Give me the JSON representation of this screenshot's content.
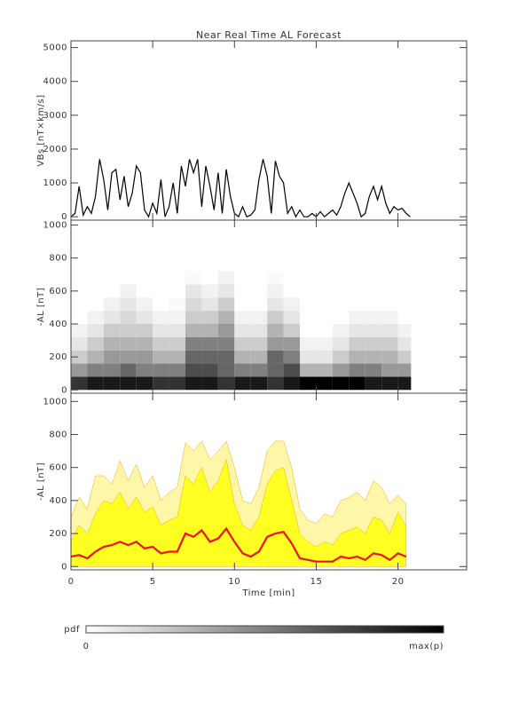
{
  "chart_data": [
    {
      "type": "line",
      "title": "Near Real Time AL Forecast",
      "ylabel": "VBs [nT×km/s]",
      "color": "#000000",
      "xlim": [
        0,
        24.2
      ],
      "xticks": [
        0,
        5,
        10,
        15,
        20
      ],
      "ylim": [
        -100,
        5200
      ],
      "yticks": [
        0,
        1000,
        2000,
        3000,
        4000,
        5000
      ],
      "x": [
        0,
        0.25,
        0.5,
        0.75,
        1,
        1.25,
        1.5,
        1.75,
        2,
        2.25,
        2.5,
        2.75,
        3,
        3.25,
        3.5,
        3.75,
        4,
        4.25,
        4.5,
        4.75,
        5,
        5.25,
        5.5,
        5.75,
        6,
        6.25,
        6.5,
        6.75,
        7,
        7.25,
        7.5,
        7.75,
        8,
        8.25,
        8.5,
        8.75,
        9,
        9.25,
        9.5,
        9.75,
        10,
        10.25,
        10.5,
        10.75,
        11,
        11.25,
        11.5,
        11.75,
        12,
        12.25,
        12.5,
        12.75,
        13,
        13.25,
        13.5,
        13.75,
        14,
        14.25,
        14.5,
        14.75,
        15,
        15.25,
        15.5,
        15.75,
        16,
        16.25,
        16.5,
        16.75,
        17,
        17.25,
        17.5,
        17.75,
        18,
        18.25,
        18.5,
        18.75,
        19,
        19.25,
        19.5,
        19.75,
        20,
        20.25,
        20.5,
        20.75
      ],
      "values": [
        0,
        100,
        900,
        50,
        300,
        100,
        600,
        1700,
        1100,
        200,
        1300,
        1400,
        500,
        1200,
        300,
        700,
        1500,
        1300,
        200,
        0,
        400,
        100,
        1100,
        0,
        300,
        1000,
        100,
        1500,
        900,
        1700,
        1300,
        1700,
        300,
        1500,
        900,
        200,
        1300,
        100,
        1400,
        600,
        100,
        0,
        300,
        0,
        50,
        200,
        1100,
        1700,
        1200,
        100,
        1650,
        1200,
        1000,
        100,
        300,
        0,
        200,
        0,
        0,
        100,
        0,
        150,
        0,
        100,
        200,
        50,
        300,
        700,
        1000,
        700,
        400,
        0,
        100,
        600,
        900,
        500,
        900,
        400,
        100,
        300,
        200,
        250,
        100,
        0
      ]
    },
    {
      "type": "heatmap",
      "ylabel": "-AL [nT]",
      "xlim": [
        0,
        24.2
      ],
      "xticks": [
        0,
        5,
        10,
        15,
        20
      ],
      "ylim": [
        -20,
        1030
      ],
      "yticks": [
        0,
        200,
        400,
        600,
        800,
        1000
      ],
      "x_edges": [
        0,
        1,
        2,
        3,
        4,
        5,
        6,
        7,
        8,
        9,
        10,
        11,
        12,
        13,
        14,
        15,
        16,
        17,
        18,
        19,
        20,
        20.8
      ],
      "y_edges": [
        0,
        80,
        160,
        240,
        320,
        400,
        480,
        560,
        640,
        720,
        800
      ],
      "pdf": [
        [
          0.8,
          0.4,
          0.2,
          0.1,
          0.05,
          0,
          0,
          0,
          0,
          0
        ],
        [
          0.9,
          0.5,
          0.3,
          0.2,
          0.1,
          0.05,
          0,
          0,
          0,
          0
        ],
        [
          0.9,
          0.5,
          0.4,
          0.3,
          0.2,
          0.1,
          0.05,
          0,
          0,
          0
        ],
        [
          0.9,
          0.6,
          0.4,
          0.3,
          0.2,
          0.15,
          0.1,
          0.05,
          0,
          0
        ],
        [
          0.9,
          0.5,
          0.4,
          0.3,
          0.2,
          0.1,
          0.05,
          0,
          0,
          0
        ],
        [
          0.8,
          0.5,
          0.3,
          0.2,
          0.1,
          0.05,
          0,
          0,
          0,
          0
        ],
        [
          0.8,
          0.5,
          0.3,
          0.2,
          0.1,
          0.05,
          0.02,
          0,
          0,
          0
        ],
        [
          0.9,
          0.7,
          0.6,
          0.5,
          0.3,
          0.2,
          0.15,
          0.1,
          0.02,
          0
        ],
        [
          0.9,
          0.7,
          0.6,
          0.5,
          0.3,
          0.2,
          0.1,
          0.05,
          0,
          0
        ],
        [
          0.8,
          0.6,
          0.6,
          0.5,
          0.4,
          0.3,
          0.2,
          0.1,
          0.05,
          0
        ],
        [
          0.9,
          0.5,
          0.3,
          0.2,
          0.1,
          0.05,
          0,
          0,
          0,
          0
        ],
        [
          0.9,
          0.5,
          0.3,
          0.2,
          0.1,
          0.05,
          0,
          0,
          0,
          0
        ],
        [
          0.8,
          0.6,
          0.6,
          0.4,
          0.3,
          0.2,
          0.1,
          0.05,
          0.02,
          0
        ],
        [
          0.9,
          0.7,
          0.5,
          0.4,
          0.2,
          0.1,
          0.05,
          0,
          0,
          0
        ],
        [
          1,
          0.3,
          0.1,
          0.05,
          0,
          0,
          0,
          0,
          0,
          0
        ],
        [
          1,
          0.3,
          0.1,
          0.05,
          0,
          0,
          0,
          0,
          0,
          0
        ],
        [
          1,
          0.4,
          0.2,
          0.1,
          0.05,
          0,
          0,
          0,
          0,
          0
        ],
        [
          1,
          0.5,
          0.3,
          0.2,
          0.1,
          0.05,
          0,
          0,
          0,
          0
        ],
        [
          0.9,
          0.5,
          0.3,
          0.2,
          0.1,
          0.05,
          0,
          0,
          0,
          0
        ],
        [
          0.9,
          0.4,
          0.3,
          0.2,
          0.1,
          0.05,
          0,
          0,
          0,
          0
        ],
        [
          0.9,
          0.4,
          0.2,
          0.1,
          0.05,
          0,
          0,
          0,
          0,
          0
        ]
      ],
      "colorbar": {
        "label": "pdf",
        "min_label": "0",
        "max_label": "max(p)"
      }
    },
    {
      "type": "area",
      "ylabel": "-AL [nT]",
      "xlabel": "Time [min]",
      "xlim": [
        0,
        24.2
      ],
      "xticks": [
        0,
        5,
        10,
        15,
        20
      ],
      "ylim": [
        -20,
        1050
      ],
      "yticks": [
        0,
        200,
        400,
        600,
        800,
        1000
      ],
      "x": [
        0,
        0.5,
        1,
        1.5,
        2,
        2.5,
        3,
        3.5,
        4,
        4.5,
        5,
        5.5,
        6,
        6.5,
        7,
        7.5,
        8,
        8.5,
        9,
        9.5,
        10,
        10.5,
        11,
        11.5,
        12,
        12.5,
        13,
        13.5,
        14,
        14.5,
        15,
        15.5,
        16,
        16.5,
        17,
        17.5,
        18,
        18.5,
        19,
        19.5,
        20,
        20.5
      ],
      "series": [
        {
          "style": "area",
          "color": "#fff7a8",
          "values": [
            300,
            420,
            350,
            550,
            550,
            500,
            640,
            520,
            620,
            480,
            550,
            400,
            450,
            480,
            750,
            700,
            760,
            650,
            700,
            760,
            600,
            400,
            380,
            480,
            700,
            760,
            760,
            600,
            350,
            280,
            260,
            320,
            300,
            400,
            420,
            450,
            400,
            520,
            480,
            380,
            430,
            380
          ]
        },
        {
          "style": "area",
          "color": "#ffff22",
          "values": [
            150,
            250,
            200,
            320,
            400,
            380,
            450,
            350,
            420,
            330,
            360,
            250,
            280,
            300,
            550,
            500,
            600,
            450,
            520,
            650,
            380,
            250,
            220,
            300,
            500,
            580,
            600,
            400,
            200,
            150,
            120,
            150,
            130,
            200,
            220,
            240,
            200,
            300,
            280,
            200,
            330,
            240
          ]
        },
        {
          "style": "line",
          "color": "#ee1111",
          "values": [
            60,
            70,
            50,
            90,
            120,
            130,
            150,
            130,
            150,
            110,
            120,
            80,
            90,
            90,
            200,
            180,
            220,
            150,
            170,
            230,
            150,
            80,
            60,
            90,
            180,
            200,
            210,
            140,
            50,
            40,
            30,
            30,
            30,
            60,
            50,
            60,
            40,
            80,
            70,
            40,
            80,
            60
          ]
        }
      ]
    }
  ]
}
